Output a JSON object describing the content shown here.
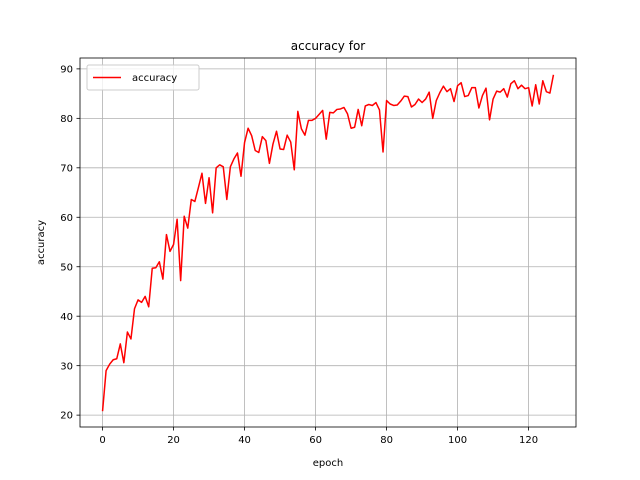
{
  "chart_data": {
    "type": "line",
    "title": "accuracy for",
    "xlabel": "epoch",
    "ylabel": "accuracy",
    "xlim": [
      -6.35,
      133.35
    ],
    "ylim": [
      17.6,
      92.2
    ],
    "xticks": [
      0,
      20,
      40,
      60,
      80,
      100,
      120
    ],
    "yticks": [
      20,
      30,
      40,
      50,
      60,
      70,
      80,
      90
    ],
    "grid": true,
    "legend": {
      "location": "upper left",
      "entries": [
        "accuracy"
      ]
    },
    "series": [
      {
        "name": "accuracy",
        "color": "#ff0000",
        "x": [
          0,
          1,
          2,
          3,
          4,
          5,
          6,
          7,
          8,
          9,
          10,
          11,
          12,
          13,
          14,
          15,
          16,
          17,
          18,
          19,
          20,
          21,
          22,
          23,
          24,
          25,
          26,
          27,
          28,
          29,
          30,
          31,
          32,
          33,
          34,
          35,
          36,
          37,
          38,
          39,
          40,
          41,
          42,
          43,
          44,
          45,
          46,
          47,
          48,
          49,
          50,
          51,
          52,
          53,
          54,
          55,
          56,
          57,
          58,
          59,
          60,
          61,
          62,
          63,
          64,
          65,
          66,
          67,
          68,
          69,
          70,
          71,
          72,
          73,
          74,
          75,
          76,
          77,
          78,
          79,
          80,
          81,
          82,
          83,
          84,
          85,
          86,
          87,
          88,
          89,
          90,
          91,
          92,
          93,
          94,
          95,
          96,
          97,
          98,
          99,
          100,
          101,
          102,
          103,
          104,
          105,
          106,
          107,
          108,
          109,
          110,
          111,
          112,
          113,
          114,
          115,
          116,
          117,
          118,
          119,
          120,
          121,
          122,
          123,
          124,
          125,
          126,
          127
        ],
        "y": [
          20.8,
          29.0,
          30.3,
          31.2,
          31.4,
          34.4,
          30.6,
          36.8,
          35.4,
          41.5,
          43.3,
          42.8,
          44.0,
          41.9,
          49.7,
          49.8,
          51.0,
          47.5,
          56.5,
          53.1,
          54.5,
          59.6,
          47.2,
          60.2,
          57.8,
          63.6,
          63.2,
          66.0,
          68.9,
          62.8,
          68.0,
          60.9,
          70.0,
          70.6,
          70.2,
          63.6,
          70.2,
          71.8,
          73.0,
          68.3,
          75.1,
          78.0,
          76.5,
          73.5,
          73.1,
          76.3,
          75.5,
          70.9,
          74.8,
          77.4,
          73.8,
          73.7,
          76.6,
          75.2,
          69.6,
          81.4,
          77.9,
          76.6,
          79.6,
          79.6,
          80.0,
          80.8,
          81.6,
          75.8,
          81.2,
          81.1,
          81.8,
          81.9,
          82.2,
          80.9,
          78.0,
          78.2,
          81.8,
          78.5,
          82.5,
          82.8,
          82.6,
          83.2,
          81.7,
          73.2,
          83.6,
          82.9,
          82.6,
          82.7,
          83.5,
          84.5,
          84.4,
          82.3,
          82.8,
          83.9,
          83.2,
          83.9,
          85.3,
          80.0,
          83.6,
          85.2,
          86.5,
          85.4,
          86.0,
          83.4,
          86.6,
          87.2,
          84.4,
          84.6,
          86.2,
          86.2,
          82.1,
          84.6,
          86.1,
          79.7,
          83.9,
          85.5,
          85.3,
          86.0,
          84.3,
          87.0,
          87.6,
          86.0,
          86.7,
          86.0,
          86.2,
          82.5,
          86.8,
          82.9,
          87.6,
          85.4,
          85.1,
          88.8
        ]
      }
    ]
  }
}
